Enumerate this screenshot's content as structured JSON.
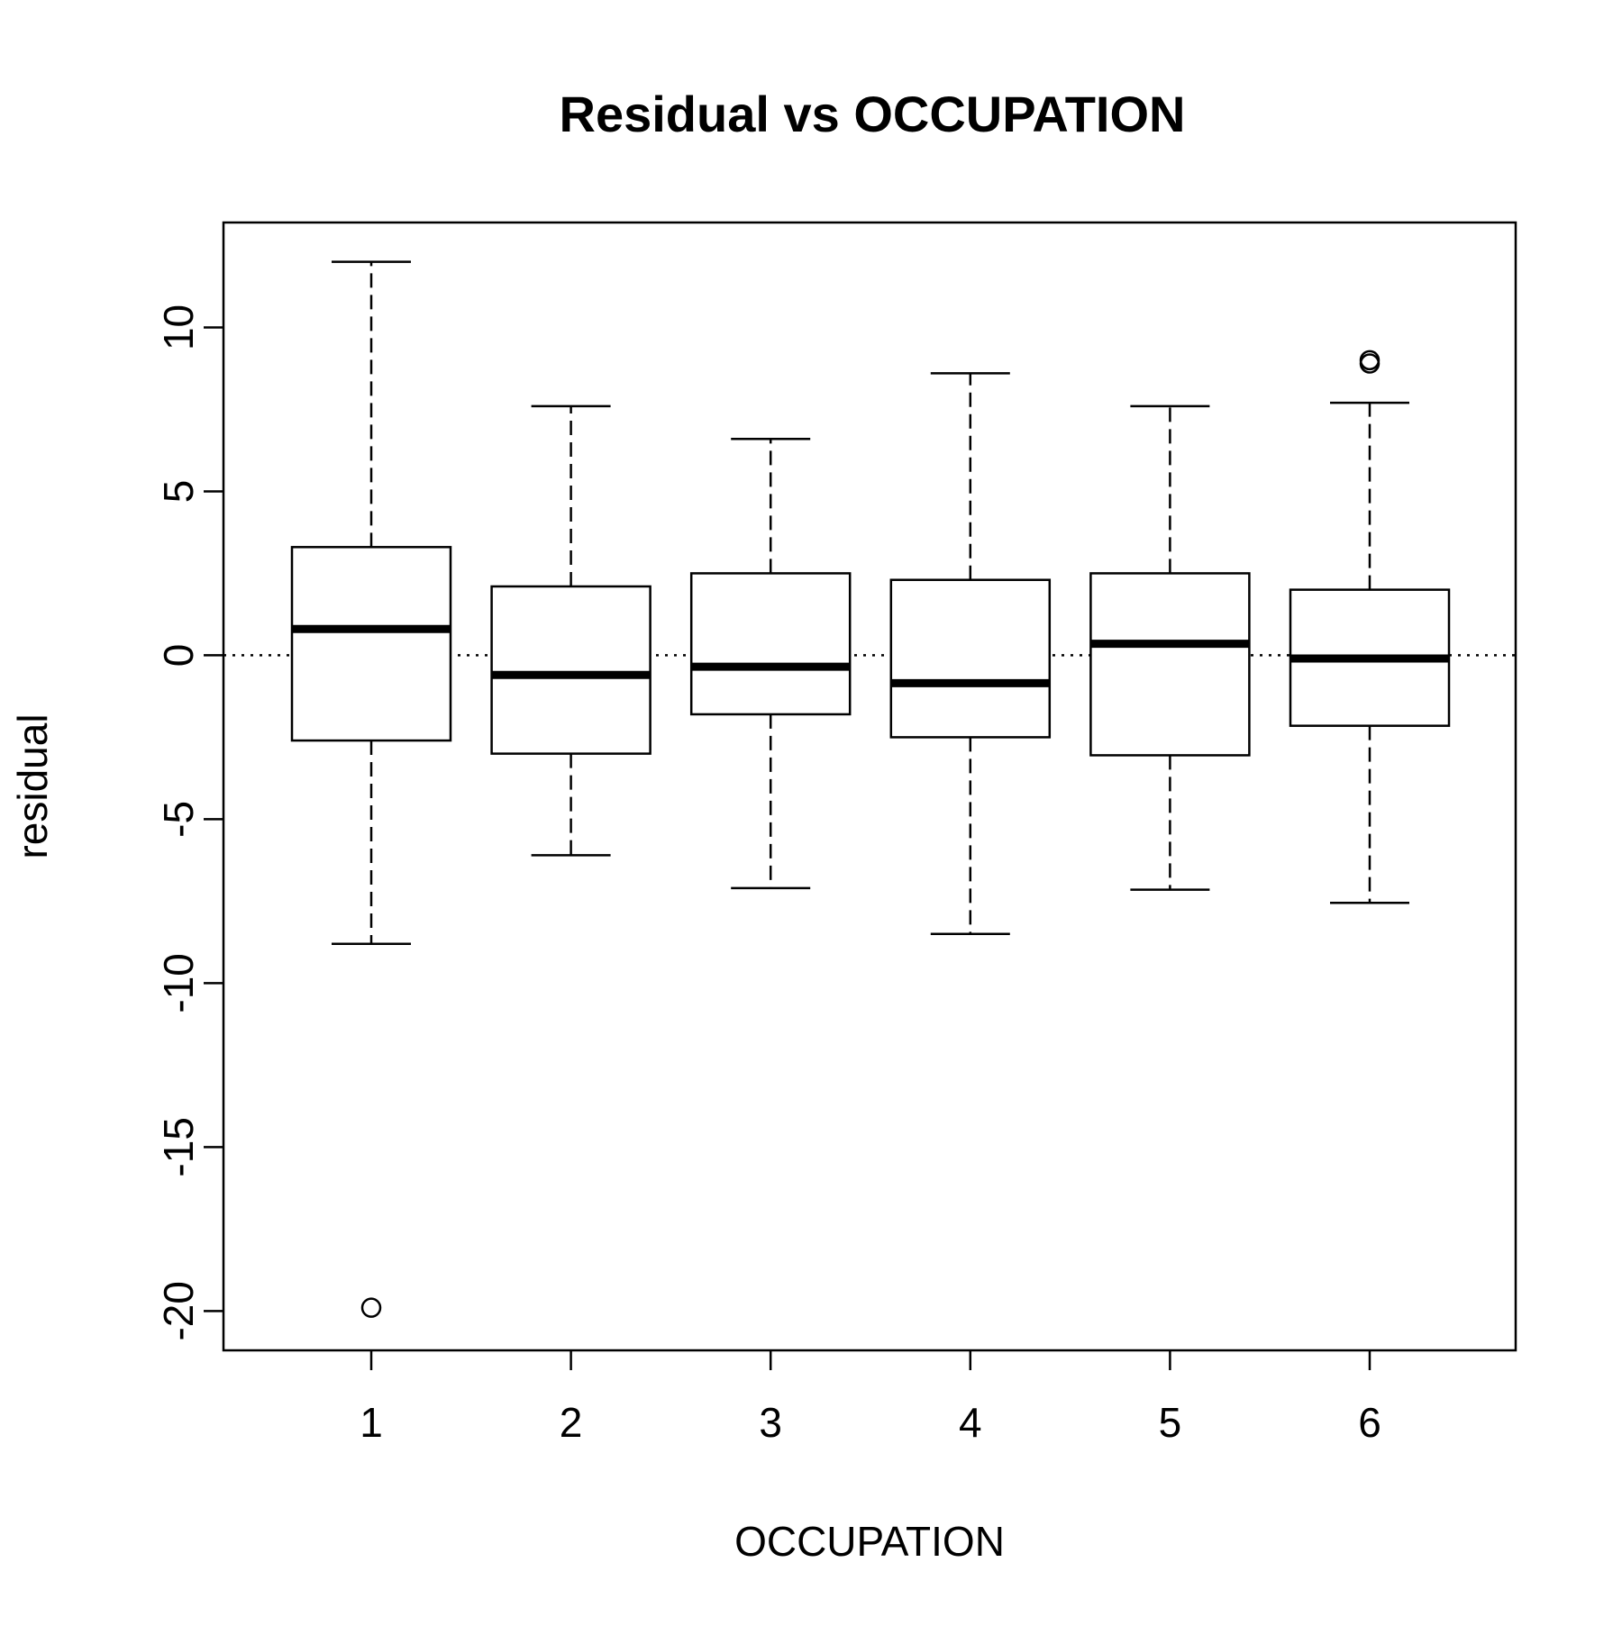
{
  "chart_data": {
    "type": "boxplot",
    "title": "Residual vs OCCUPATION",
    "xlabel": "OCCUPATION",
    "ylabel": "residual",
    "categories": [
      "1",
      "2",
      "3",
      "4",
      "5",
      "6"
    ],
    "ylim": [
      -21.2,
      13.2
    ],
    "yticks": [
      -20,
      -15,
      -10,
      -5,
      0,
      5,
      10
    ],
    "reference_line": {
      "y": 0,
      "style": "dotted"
    },
    "boxes": [
      {
        "category": "1",
        "whisker_low": -8.8,
        "q1": -2.6,
        "median": 0.8,
        "q3": 3.3,
        "whisker_high": 12.0,
        "outliers": [
          -19.9
        ]
      },
      {
        "category": "2",
        "whisker_low": -6.1,
        "q1": -3.0,
        "median": -0.6,
        "q3": 2.1,
        "whisker_high": 7.6,
        "outliers": []
      },
      {
        "category": "3",
        "whisker_low": -7.1,
        "q1": -1.8,
        "median": -0.35,
        "q3": 2.5,
        "whisker_high": 6.6,
        "outliers": []
      },
      {
        "category": "4",
        "whisker_low": -8.5,
        "q1": -2.5,
        "median": -0.85,
        "q3": 2.3,
        "whisker_high": 8.6,
        "outliers": []
      },
      {
        "category": "5",
        "whisker_low": -7.15,
        "q1": -3.05,
        "median": 0.35,
        "q3": 2.5,
        "whisker_high": 7.6,
        "outliers": []
      },
      {
        "category": "6",
        "whisker_low": -7.55,
        "q1": -2.15,
        "median": -0.1,
        "q3": 2.0,
        "whisker_high": 7.7,
        "outliers": [
          8.9,
          9.0
        ]
      }
    ],
    "grid": false,
    "legend": "none"
  }
}
